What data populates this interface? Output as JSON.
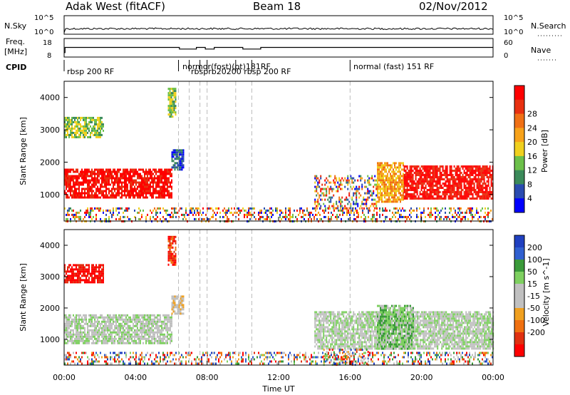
{
  "header": {
    "station": "Adak West (fitACF)",
    "beam": "Beam 18",
    "date": "02/Nov/2012"
  },
  "colors": {
    "power": [
      "#0000ff",
      "#2a4bb0",
      "#3b8a5a",
      "#6cc04a",
      "#f0d01e",
      "#f7a21a",
      "#f07015",
      "#e83010",
      "#ff0000"
    ],
    "velocity": [
      "#2040c0",
      "#3060d0",
      "#3a9a3a",
      "#7ed060",
      "#c0c0c0",
      "#c0c0c0",
      "#f0a020",
      "#f07010",
      "#e03010",
      "#ff0000"
    ],
    "ground_scatter": "#c0c0c0"
  },
  "chart_data": [
    {
      "type": "line",
      "panel": "noise",
      "labels_left": [
        "N.Sky"
      ],
      "labels_right": [
        "N.Search"
      ],
      "y_ticks_left": [
        "10^5",
        "10^0"
      ],
      "y_ticks_right": [
        "10^5",
        "10^0"
      ],
      "xlim": [
        "00:00",
        "24:00"
      ]
    },
    {
      "type": "line",
      "panel": "frequency",
      "labels_left": [
        "Freq.",
        "[MHz]"
      ],
      "labels_right": [
        "Nave"
      ],
      "y_ticks_left": [
        "18",
        "8"
      ],
      "y_ticks_right": [
        "60",
        "0"
      ],
      "series": [
        {
          "name": "Freq.",
          "x": [
            0.0,
            0.05,
            6.4,
            6.45,
            7.0,
            7.4,
            7.9,
            8.4,
            9.6,
            10.0,
            10.5,
            11.0,
            16.0,
            24.0
          ],
          "values": [
            10.4,
            13.2,
            13.2,
            12.3,
            12.3,
            13.2,
            12.3,
            13.2,
            13.2,
            12.3,
            12.3,
            13.2,
            13.2,
            13.2
          ]
        }
      ]
    },
    {
      "type": "table",
      "panel": "cpid",
      "label": "CPID",
      "segments": [
        {
          "start": 0.0,
          "text": "rbsp 200 RF"
        },
        {
          "start": 6.4,
          "text": "normal (fast) 151 RF"
        },
        {
          "start": 7.0,
          "text": "rbsp 200 RF"
        },
        {
          "start": 7.6,
          "text": "normal (fast) 151 RF"
        },
        {
          "start": 8.0,
          "text": "rbsp 200 RF"
        },
        {
          "start": 9.6,
          "text": "normal (fast) 151 RF"
        },
        {
          "start": 10.5,
          "text": "rbsp 200 RF"
        },
        {
          "start": 16.0,
          "text": "normal (fast) 151 RF"
        }
      ],
      "cpid_dividers": [
        6.4,
        7.0,
        7.6,
        8.0,
        9.6,
        10.5,
        16.0
      ],
      "visible_text": [
        "rbsp 200 RF",
        "normor(fost)(ot)181RF",
        "rbsprb20200 rbsp 200 RF",
        "normal (fast) 151 RF"
      ]
    },
    {
      "type": "heatmap",
      "panel": "power",
      "ylabel": "Slant Range [km]",
      "ylim": [
        180,
        4500
      ],
      "y_ticks": [
        1000,
        2000,
        3000,
        4000
      ],
      "colorbar_label": "Power [dB]",
      "colorbar_ticks": [
        4,
        8,
        12,
        16,
        20,
        24,
        28
      ],
      "regions": [
        {
          "t0": 0.0,
          "t1": 6.0,
          "r0": 900,
          "r1": 1800,
          "level": 8
        },
        {
          "t0": 0.0,
          "t1": 2.2,
          "r0": 2800,
          "r1": 3400,
          "level": 3
        },
        {
          "t0": 6.0,
          "t1": 6.7,
          "r0": 1800,
          "r1": 2400,
          "level": 1
        },
        {
          "t0": 5.8,
          "t1": 6.2,
          "r0": 3400,
          "r1": 4300,
          "level": 3
        },
        {
          "t0": 14.0,
          "t1": 17.5,
          "r0": 600,
          "r1": 1600,
          "level": 7
        },
        {
          "t0": 17.5,
          "t1": 19.0,
          "r0": 800,
          "r1": 2000,
          "level": 5
        },
        {
          "t0": 19.0,
          "t1": 24.0,
          "r0": 900,
          "r1": 1900,
          "level": 8
        },
        {
          "t0": 0.0,
          "t1": 24.0,
          "r0": 200,
          "r1": 600,
          "level": 4
        }
      ]
    },
    {
      "type": "heatmap",
      "panel": "velocity",
      "ylabel": "Slant Range [km]",
      "ylim": [
        180,
        4500
      ],
      "y_ticks": [
        1000,
        2000,
        3000,
        4000
      ],
      "xlabel": "Time UT",
      "x_ticks": [
        "00:00",
        "04:00",
        "08:00",
        "12:00",
        "16:00",
        "20:00",
        "00:00"
      ],
      "colorbar_label": "Velocity [m s^-1]",
      "colorbar_ticks": [
        200,
        100,
        50,
        15,
        -15,
        -50,
        -100,
        -200
      ],
      "regions": [
        {
          "t0": 0.0,
          "t1": 6.0,
          "r0": 900,
          "r1": 1800,
          "level": 4
        },
        {
          "t0": 0.0,
          "t1": 2.2,
          "r0": 2800,
          "r1": 3400,
          "level": 9
        },
        {
          "t0": 6.0,
          "t1": 6.7,
          "r0": 1800,
          "r1": 2400,
          "level": 5
        },
        {
          "t0": 5.8,
          "t1": 6.2,
          "r0": 3400,
          "r1": 4300,
          "level": 8
        },
        {
          "t0": 14.0,
          "t1": 24.0,
          "r0": 700,
          "r1": 1900,
          "level": 4
        },
        {
          "t0": 17.5,
          "t1": 19.5,
          "r0": 700,
          "r1": 2100,
          "level": 3
        },
        {
          "t0": 14.5,
          "t1": 17.0,
          "r0": 200,
          "r1": 700,
          "level": 6
        },
        {
          "t0": 0.0,
          "t1": 24.0,
          "r0": 200,
          "r1": 600,
          "level": 5
        }
      ]
    }
  ]
}
